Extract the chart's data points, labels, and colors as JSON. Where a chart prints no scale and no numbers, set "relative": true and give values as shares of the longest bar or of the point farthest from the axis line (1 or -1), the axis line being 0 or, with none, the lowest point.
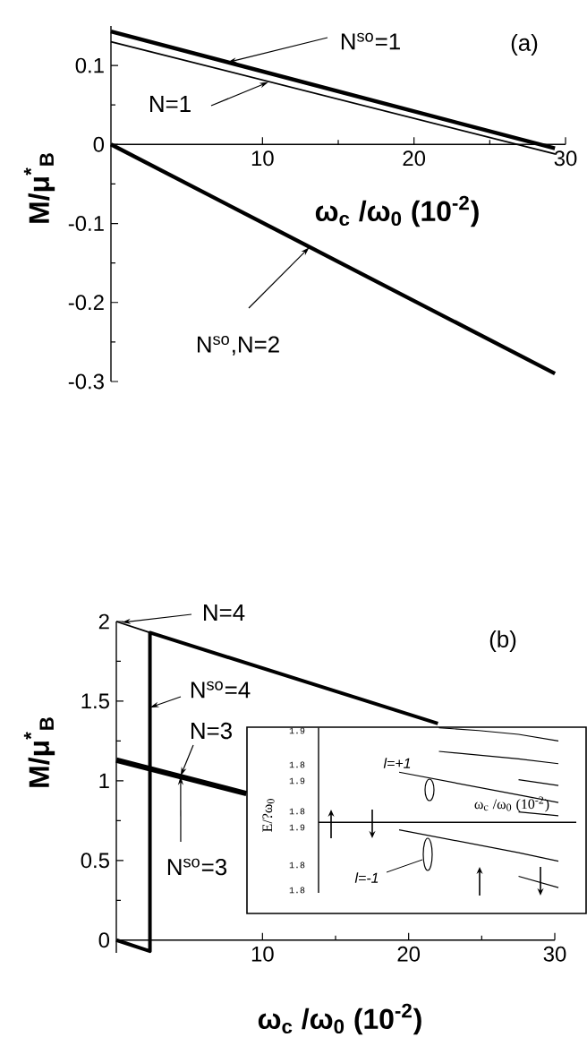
{
  "chart_data": [
    {
      "type": "line",
      "xlabel": "ω$_{c}$ /ω$_{0}$ (10$^{-2}$)",
      "ylabel": "M/μ$^{*}$$_{B}$",
      "xlim": [
        0,
        30
      ],
      "xticks": [
        10,
        20,
        30
      ],
      "ylim": [
        -0.3,
        0.15
      ],
      "yticks": [
        -0.3,
        -0.2,
        -0.1,
        0,
        0.1
      ],
      "series": [
        {
          "color": "#000000",
          "x": [
            0,
            29.3
          ],
          "values": [
            0.143,
            -0.005
          ]
        },
        {
          "color": "#000000",
          "x": [
            0,
            29.3
          ],
          "values": [
            0.13,
            -0.012
          ]
        },
        {
          "color": "#000000",
          "x": [
            0,
            29.3
          ],
          "values": [
            0,
            -0.29
          ]
        }
      ],
      "annotations": [
        {
          "text": "N$^{so}$=1",
          "x": 7.7,
          "y": 0.104
        },
        {
          "text": "N=1",
          "x": 10.4,
          "y": 0.079
        },
        {
          "text": "N$^{so}$,N=2",
          "x": 13.1,
          "y": -0.13
        },
        "(a)"
      ]
    },
    {
      "type": "line",
      "xlabel": "ω$_{c}$ /ω$_{0}$ (10$^{-2}$)",
      "ylabel": "M/μ$^{*}$$_{B}$",
      "xlim": [
        0,
        30
      ],
      "xticks": [
        10,
        20,
        30
      ],
      "ylim": [
        -0.08,
        2
      ],
      "yticks": [
        0,
        0.5,
        1,
        1.5,
        2
      ],
      "series": [
        {
          "color": "#000000",
          "x": [
            0,
            2.3
          ],
          "values": [
            2,
            1.93
          ]
        },
        {
          "color": "#000000",
          "x": [
            0,
            2.3,
            2.3,
            22
          ],
          "values": [
            0,
            -0.07,
            1.93,
            1.36
          ]
        },
        {
          "color": "#000000",
          "x": [
            0,
            8.9
          ],
          "values": [
            1.13,
            0.92
          ]
        }
      ],
      "annotations": [
        "N=4",
        {
          "text": "N$^{so}$=4",
          "x": 2.3,
          "y": 1.46
        },
        {
          "text": "N=3",
          "x": 4.4,
          "y": 1.03
        },
        {
          "text": "N$^{so}$=3",
          "x": 4.4,
          "y": 1.03
        },
        "(b)"
      ]
    },
    {
      "type": "line",
      "relative": true,
      "xlabel": "ω$_{c}$ /ω$_{0}$ (10$^{-2}$)",
      "ylabel": "E/?ω$_{0}$",
      "categories": [
        null,
        null,
        null,
        null,
        null
      ],
      "series": [
        {
          "color": "#000000",
          "values": [
            null,
            1.0,
            0.97,
            0.93,
            0.86
          ]
        },
        {
          "color": "#000000",
          "values": [
            null,
            0.75,
            0.71,
            0.67,
            0.62
          ]
        },
        {
          "color": "#000000",
          "values": [
            0.53,
            0.45,
            0.37,
            0.29,
            0.21
          ]
        },
        {
          "color": "#000000",
          "values": [
            null,
            null,
            null,
            0.45,
            0.39
          ]
        },
        {
          "color": "#000000",
          "values": [
            null,
            null,
            null,
            0.11,
            0.07
          ]
        },
        {
          "color": "#000000",
          "values": [
            -0.08,
            -0.16,
            -0.24,
            -0.32,
            -0.41
          ]
        },
        {
          "color": "#000000",
          "values": [
            null,
            null,
            null,
            -0.57,
            -0.69
          ]
        }
      ],
      "annotations": [
        "l=+1",
        "l=-1",
        "1.9",
        "1.8",
        "1.9",
        "1.8",
        "1.9",
        "1.8",
        "1.8"
      ]
    }
  ]
}
